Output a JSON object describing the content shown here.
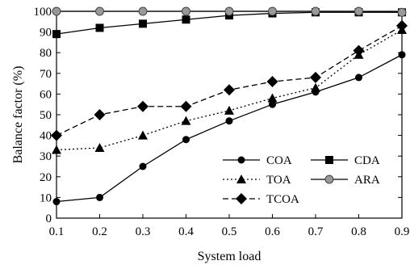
{
  "chart_data": {
    "type": "line",
    "xlabel": "System load",
    "ylabel": "Balance factor (%)",
    "xlim": [
      0.1,
      0.9
    ],
    "ylim": [
      0,
      100
    ],
    "x_ticks": [
      "0.1",
      "0.2",
      "0.3",
      "0.4",
      "0.5",
      "0.6",
      "0.7",
      "0.8",
      "0.9"
    ],
    "y_ticks": [
      "0",
      "10",
      "20",
      "30",
      "40",
      "50",
      "60",
      "70",
      "80",
      "90",
      "100"
    ],
    "grid": false,
    "legend_position": "bottom-right",
    "x": [
      0.1,
      0.2,
      0.3,
      0.4,
      0.5,
      0.6,
      0.7,
      0.8,
      0.9
    ],
    "series": [
      {
        "name": "COA",
        "marker": "circle",
        "line": "solid",
        "color": "#000000",
        "values": [
          8,
          10,
          25,
          38,
          47,
          55,
          61,
          68,
          79
        ]
      },
      {
        "name": "CDA",
        "marker": "square",
        "line": "solid",
        "color": "#000000",
        "values": [
          89,
          92,
          94,
          96,
          98,
          99,
          99.5,
          99.5,
          99.5
        ]
      },
      {
        "name": "TOA",
        "marker": "triangle",
        "line": "dotted",
        "color": "#000000",
        "values": [
          33,
          34,
          40,
          47,
          52,
          58,
          63,
          79,
          91
        ]
      },
      {
        "name": "ARA",
        "marker": "circle-gray",
        "line": "solid",
        "color": "#000000",
        "values": [
          100,
          100,
          100,
          100,
          100,
          100,
          100,
          100,
          99.5
        ]
      },
      {
        "name": "TCOA",
        "marker": "diamond",
        "line": "dashed",
        "color": "#000000",
        "values": [
          40,
          50,
          54,
          54,
          62,
          66,
          68,
          81,
          93
        ]
      }
    ]
  }
}
